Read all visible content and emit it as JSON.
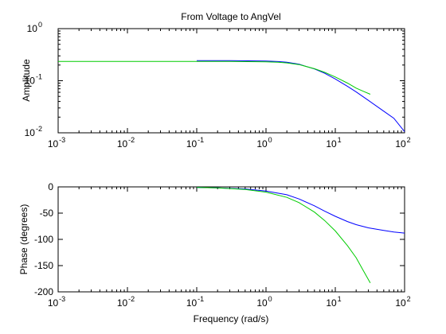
{
  "colors": {
    "blue_series": "#0000ff",
    "green_series": "#00cc00",
    "axes": "#000000",
    "background": "#ffffff"
  },
  "chart_data": [
    {
      "type": "line",
      "title": "From Voltage to AngVel",
      "xlabel": "",
      "ylabel": "Amplitude",
      "xscale": "log",
      "yscale": "log",
      "xlim": [
        0.001,
        100
      ],
      "ylim": [
        0.01,
        1
      ],
      "x_ticks": [
        {
          "value": 0.001,
          "base": "10",
          "exp": "-3"
        },
        {
          "value": 0.01,
          "base": "10",
          "exp": "-2"
        },
        {
          "value": 0.1,
          "base": "10",
          "exp": "-1"
        },
        {
          "value": 1,
          "base": "10",
          "exp": "0"
        },
        {
          "value": 10,
          "base": "10",
          "exp": "1"
        },
        {
          "value": 100,
          "base": "10",
          "exp": "2"
        }
      ],
      "y_ticks": [
        {
          "value": 0.01,
          "base": "10",
          "exp": "-2"
        },
        {
          "value": 0.1,
          "base": "10",
          "exp": "-1"
        },
        {
          "value": 1,
          "base": "10",
          "exp": "0"
        }
      ],
      "grid": false,
      "series": [
        {
          "color": "#0000ff",
          "x": [
            0.1,
            0.3,
            1,
            1.5,
            2,
            3,
            5,
            7,
            10,
            15,
            20,
            30,
            50,
            70,
            100
          ],
          "y": [
            0.243,
            0.243,
            0.238,
            0.233,
            0.226,
            0.207,
            0.168,
            0.139,
            0.108,
            0.078,
            0.061,
            0.042,
            0.026,
            0.019,
            0.0105
          ]
        },
        {
          "color": "#00cc00",
          "x": [
            0.001,
            0.01,
            0.1,
            0.3,
            1,
            1.5,
            2,
            3,
            5,
            7,
            10,
            15,
            20,
            25,
            32
          ],
          "y": [
            0.235,
            0.235,
            0.235,
            0.235,
            0.231,
            0.226,
            0.22,
            0.204,
            0.17,
            0.145,
            0.118,
            0.09,
            0.072,
            0.063,
            0.055
          ]
        }
      ]
    },
    {
      "type": "line",
      "title": "",
      "xlabel": "Frequency (rad/s)",
      "ylabel": "Phase (degrees)",
      "xscale": "log",
      "yscale": "linear",
      "xlim": [
        0.001,
        100
      ],
      "ylim": [
        -200,
        0
      ],
      "x_ticks": [
        {
          "value": 0.001,
          "base": "10",
          "exp": "-3"
        },
        {
          "value": 0.01,
          "base": "10",
          "exp": "-2"
        },
        {
          "value": 0.1,
          "base": "10",
          "exp": "-1"
        },
        {
          "value": 1,
          "base": "10",
          "exp": "0"
        },
        {
          "value": 10,
          "base": "10",
          "exp": "1"
        },
        {
          "value": 100,
          "base": "10",
          "exp": "2"
        }
      ],
      "y_ticks": [
        {
          "value": 0,
          "label": "0"
        },
        {
          "value": -50,
          "label": "-50"
        },
        {
          "value": -100,
          "label": "-100"
        },
        {
          "value": -150,
          "label": "-150"
        },
        {
          "value": -200,
          "label": "-200"
        }
      ],
      "grid": false,
      "series": [
        {
          "color": "#0000ff",
          "x": [
            0.1,
            0.2,
            0.5,
            1,
            2,
            3,
            5,
            7,
            10,
            15,
            20,
            30,
            50,
            70,
            100
          ],
          "y": [
            -1,
            -2,
            -4,
            -8,
            -15,
            -23,
            -36,
            -46,
            -56,
            -66,
            -72,
            -78,
            -83,
            -86,
            -88
          ]
        },
        {
          "color": "#00cc00",
          "x": [
            0.1,
            0.2,
            0.5,
            1,
            2,
            3,
            5,
            7,
            10,
            15,
            20,
            25,
            32
          ],
          "y": [
            -1,
            -2,
            -5,
            -10,
            -20,
            -30,
            -48,
            -64,
            -84,
            -112,
            -135,
            -158,
            -183
          ]
        }
      ]
    }
  ]
}
